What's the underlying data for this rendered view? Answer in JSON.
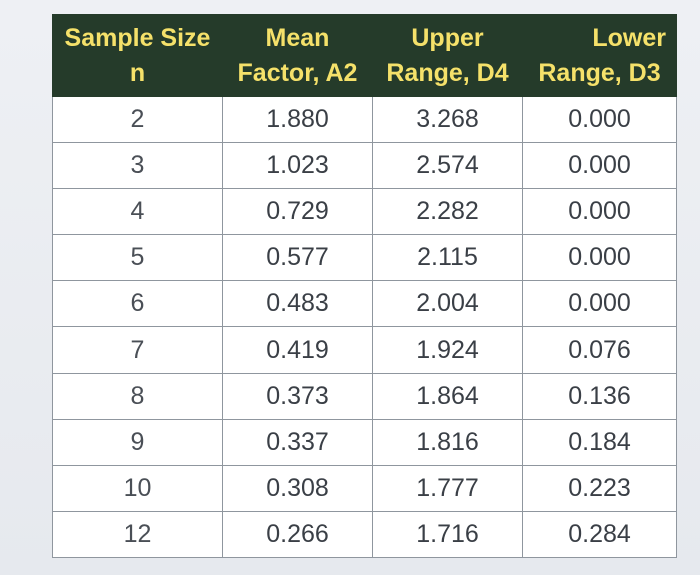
{
  "header": {
    "row1": [
      "Sample Size",
      "Mean",
      "Upper",
      "Lower"
    ],
    "row2": [
      "n",
      "Factor, A2",
      "Range, D4",
      "Range, D3"
    ]
  },
  "rows": [
    [
      "2",
      "1.880",
      "3.268",
      "0.000"
    ],
    [
      "3",
      "1.023",
      "2.574",
      "0.000"
    ],
    [
      "4",
      "0.729",
      "2.282",
      "0.000"
    ],
    [
      "5",
      "0.577",
      "2.115",
      "0.000"
    ],
    [
      "6",
      "0.483",
      "2.004",
      "0.000"
    ],
    [
      "7",
      "0.419",
      "1.924",
      "0.076"
    ],
    [
      "8",
      "0.373",
      "1.864",
      "0.136"
    ],
    [
      "9",
      "0.337",
      "1.816",
      "0.184"
    ],
    [
      "10",
      "0.308",
      "1.777",
      "0.223"
    ],
    [
      "12",
      "0.266",
      "1.716",
      "0.284"
    ]
  ],
  "colors": {
    "header_bg": "#253b2a",
    "header_text": "#f5e16a",
    "cell_text": "#3a3f46"
  }
}
